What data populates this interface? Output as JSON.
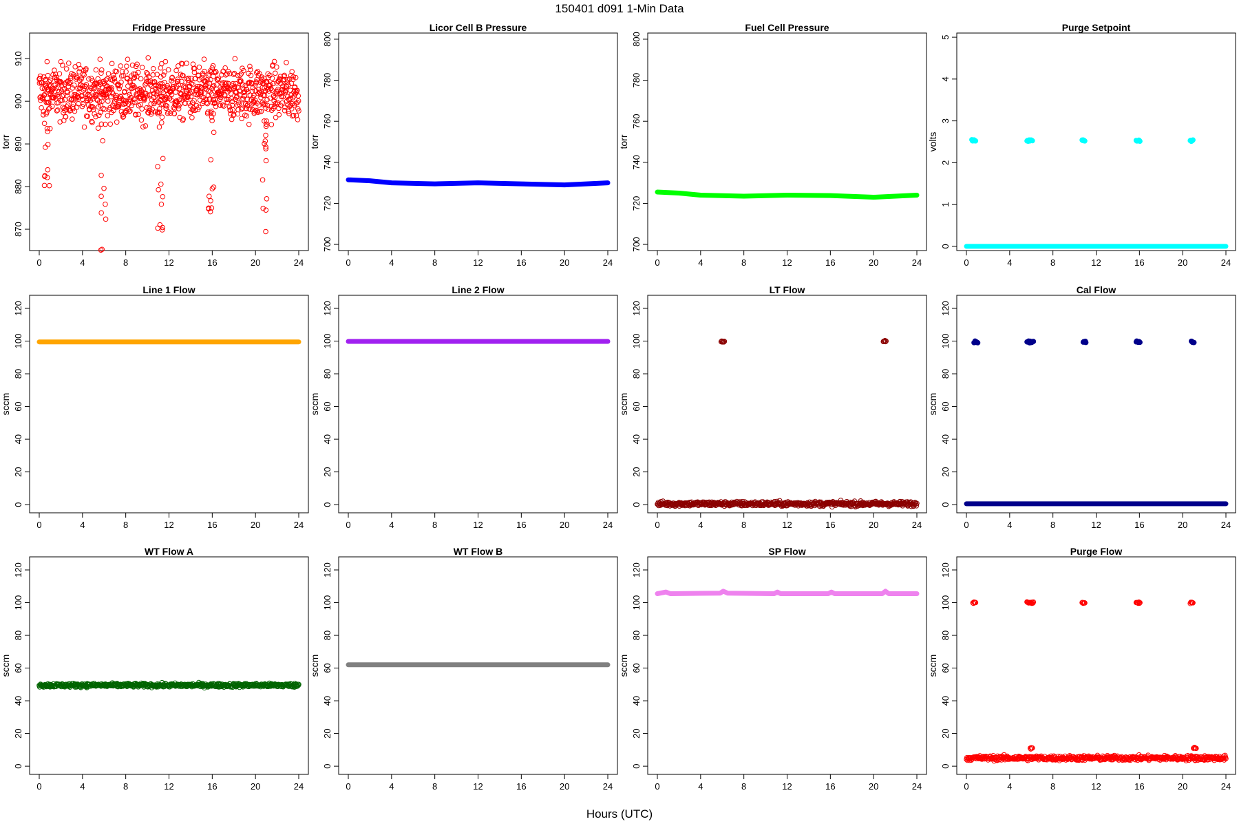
{
  "page_title": "150401    d091    1-Min Data",
  "xaxis_title": "Hours (UTC)",
  "chart_data": [
    {
      "type": "scatter",
      "title": "Fridge Pressure",
      "ylabel": "torr",
      "xlim": [
        0,
        24
      ],
      "ylim": [
        865,
        916
      ],
      "xticks": [
        0,
        4,
        8,
        12,
        16,
        20,
        24
      ],
      "yticks": [
        870,
        880,
        890,
        900,
        910
      ],
      "color": "#ff0000",
      "filled": false,
      "series": [
        {
          "kind": "noisy",
          "base": 902,
          "spread": 11,
          "dips": [
            [
              0.7,
              877
            ],
            [
              5.9,
              865
            ],
            [
              11.2,
              869
            ],
            [
              15.9,
              870
            ],
            [
              20.9,
              867
            ]
          ]
        }
      ]
    },
    {
      "type": "scatter",
      "title": "Licor Cell B Pressure",
      "ylabel": "torr",
      "xlim": [
        0,
        24
      ],
      "ylim": [
        697,
        803
      ],
      "xticks": [
        0,
        4,
        8,
        12,
        16,
        20,
        24
      ],
      "yticks": [
        700,
        720,
        740,
        760,
        780,
        800
      ],
      "color": "#0000ff",
      "filled": true,
      "series": [
        {
          "kind": "path",
          "points": [
            [
              0,
              731.5
            ],
            [
              2,
              731
            ],
            [
              4,
              730
            ],
            [
              8,
              729.5
            ],
            [
              12,
              730
            ],
            [
              16,
              729.5
            ],
            [
              20,
              729
            ],
            [
              24,
              730
            ]
          ]
        }
      ]
    },
    {
      "type": "scatter",
      "title": "Fuel Cell Pressure",
      "ylabel": "torr",
      "xlim": [
        0,
        24
      ],
      "ylim": [
        697,
        803
      ],
      "xticks": [
        0,
        4,
        8,
        12,
        16,
        20,
        24
      ],
      "yticks": [
        700,
        720,
        740,
        760,
        780,
        800
      ],
      "color": "#00ff00",
      "filled": true,
      "series": [
        {
          "kind": "path",
          "points": [
            [
              0,
              725.5
            ],
            [
              2,
              725
            ],
            [
              4,
              724
            ],
            [
              8,
              723.5
            ],
            [
              12,
              724
            ],
            [
              16,
              723.8
            ],
            [
              20,
              723
            ],
            [
              24,
              724
            ]
          ]
        }
      ]
    },
    {
      "type": "scatter",
      "title": "Purge Setpoint",
      "ylabel": "volts",
      "xlim": [
        0,
        24
      ],
      "ylim": [
        -0.1,
        5.1
      ],
      "xticks": [
        0,
        4,
        8,
        12,
        16,
        20,
        24
      ],
      "yticks": [
        0,
        1,
        2,
        3,
        4,
        5
      ],
      "color": "#00ffff",
      "filled": true,
      "series": [
        {
          "kind": "path",
          "points": [
            [
              0,
              0
            ],
            [
              24,
              0
            ]
          ]
        },
        {
          "kind": "clusters",
          "y": 2.53,
          "xs": [
            [
              0.5,
              0.9
            ],
            [
              5.6,
              6.1
            ],
            [
              10.7,
              11.0
            ],
            [
              15.7,
              16.1
            ],
            [
              20.7,
              21.0
            ]
          ]
        }
      ]
    },
    {
      "type": "scatter",
      "title": "Line 1 Flow",
      "ylabel": "sccm",
      "xlim": [
        0,
        24
      ],
      "ylim": [
        -5,
        128
      ],
      "xticks": [
        0,
        4,
        8,
        12,
        16,
        20,
        24
      ],
      "yticks": [
        0,
        20,
        40,
        60,
        80,
        100,
        120
      ],
      "color": "#ffa500",
      "filled": true,
      "series": [
        {
          "kind": "path",
          "points": [
            [
              0,
              99.5
            ],
            [
              24,
              99.5
            ]
          ]
        }
      ]
    },
    {
      "type": "scatter",
      "title": "Line 2 Flow",
      "ylabel": "sccm",
      "xlim": [
        0,
        24
      ],
      "ylim": [
        -5,
        128
      ],
      "xticks": [
        0,
        4,
        8,
        12,
        16,
        20,
        24
      ],
      "yticks": [
        0,
        20,
        40,
        60,
        80,
        100,
        120
      ],
      "color": "#a020f0",
      "filled": true,
      "series": [
        {
          "kind": "path",
          "points": [
            [
              0,
              99.8
            ],
            [
              24,
              99.8
            ]
          ]
        }
      ]
    },
    {
      "type": "scatter",
      "title": "LT Flow",
      "ylabel": "sccm",
      "xlim": [
        0,
        24
      ],
      "ylim": [
        -5,
        128
      ],
      "xticks": [
        0,
        4,
        8,
        12,
        16,
        20,
        24
      ],
      "yticks": [
        0,
        20,
        40,
        60,
        80,
        100,
        120
      ],
      "color": "#8b0000",
      "filled": false,
      "series": [
        {
          "kind": "band",
          "y": 0.5,
          "spread": 2.5
        },
        {
          "kind": "clusters",
          "y": 100,
          "xs": [
            [
              5.9,
              6.2
            ],
            [
              20.9,
              21.2
            ]
          ]
        }
      ]
    },
    {
      "type": "scatter",
      "title": "Cal Flow",
      "ylabel": "sccm",
      "xlim": [
        0,
        24
      ],
      "ylim": [
        -5,
        128
      ],
      "xticks": [
        0,
        4,
        8,
        12,
        16,
        20,
        24
      ],
      "yticks": [
        0,
        20,
        40,
        60,
        80,
        100,
        120
      ],
      "color": "#00008b",
      "filled": true,
      "series": [
        {
          "kind": "path",
          "points": [
            [
              0,
              0.5
            ],
            [
              24,
              0.5
            ]
          ]
        },
        {
          "kind": "clusters",
          "y": 99.5,
          "xs": [
            [
              0.7,
              1.1
            ],
            [
              5.6,
              6.2
            ],
            [
              10.8,
              11.1
            ],
            [
              15.7,
              16.1
            ],
            [
              20.8,
              21.1
            ]
          ]
        }
      ]
    },
    {
      "type": "scatter",
      "title": "WT Flow A",
      "ylabel": "sccm",
      "xlim": [
        0,
        24
      ],
      "ylim": [
        -5,
        128
      ],
      "xticks": [
        0,
        4,
        8,
        12,
        16,
        20,
        24
      ],
      "yticks": [
        0,
        20,
        40,
        60,
        80,
        100,
        120
      ],
      "color": "#006400",
      "filled": false,
      "series": [
        {
          "kind": "band",
          "y": 49.5,
          "spread": 2
        }
      ]
    },
    {
      "type": "scatter",
      "title": "WT Flow B",
      "ylabel": "sccm",
      "xlim": [
        0,
        24
      ],
      "ylim": [
        -5,
        128
      ],
      "xticks": [
        0,
        4,
        8,
        12,
        16,
        20,
        24
      ],
      "yticks": [
        0,
        20,
        40,
        60,
        80,
        100,
        120
      ],
      "color": "#808080",
      "filled": true,
      "series": [
        {
          "kind": "path",
          "points": [
            [
              0,
              62
            ],
            [
              24,
              62
            ]
          ]
        }
      ]
    },
    {
      "type": "scatter",
      "title": "SP Flow",
      "ylabel": "sccm",
      "xlim": [
        0,
        24
      ],
      "ylim": [
        -5,
        128
      ],
      "xticks": [
        0,
        4,
        8,
        12,
        16,
        20,
        24
      ],
      "yticks": [
        0,
        20,
        40,
        60,
        80,
        100,
        120
      ],
      "color": "#ee82ee",
      "filled": true,
      "series": [
        {
          "kind": "path",
          "points": [
            [
              0,
              105.5
            ],
            [
              0.8,
              106.5
            ],
            [
              1.2,
              105.5
            ],
            [
              5.8,
              105.8
            ],
            [
              6.1,
              107
            ],
            [
              6.5,
              105.8
            ],
            [
              10.8,
              105.5
            ],
            [
              11.1,
              106.5
            ],
            [
              11.4,
              105.5
            ],
            [
              15.8,
              105.5
            ],
            [
              16.1,
              106.5
            ],
            [
              16.4,
              105.5
            ],
            [
              20.8,
              105.5
            ],
            [
              21.1,
              107
            ],
            [
              21.4,
              105.5
            ],
            [
              24,
              105.5
            ]
          ]
        }
      ]
    },
    {
      "type": "scatter",
      "title": "Purge Flow",
      "ylabel": "sccm",
      "xlim": [
        0,
        24
      ],
      "ylim": [
        -5,
        128
      ],
      "xticks": [
        0,
        4,
        8,
        12,
        16,
        20,
        24
      ],
      "yticks": [
        0,
        20,
        40,
        60,
        80,
        100,
        120
      ],
      "color": "#ff0000",
      "filled": false,
      "series": [
        {
          "kind": "band",
          "y": 5,
          "spread": 2.5
        },
        {
          "kind": "clusters",
          "y": 100,
          "xs": [
            [
              0.6,
              0.9
            ],
            [
              5.6,
              6.2
            ],
            [
              10.7,
              11.0
            ],
            [
              15.7,
              16.1
            ],
            [
              20.7,
              21.0
            ]
          ]
        },
        {
          "kind": "clusters",
          "y": 11,
          "xs": [
            [
              5.9,
              6.1
            ],
            [
              21.0,
              21.3
            ]
          ]
        }
      ]
    }
  ]
}
